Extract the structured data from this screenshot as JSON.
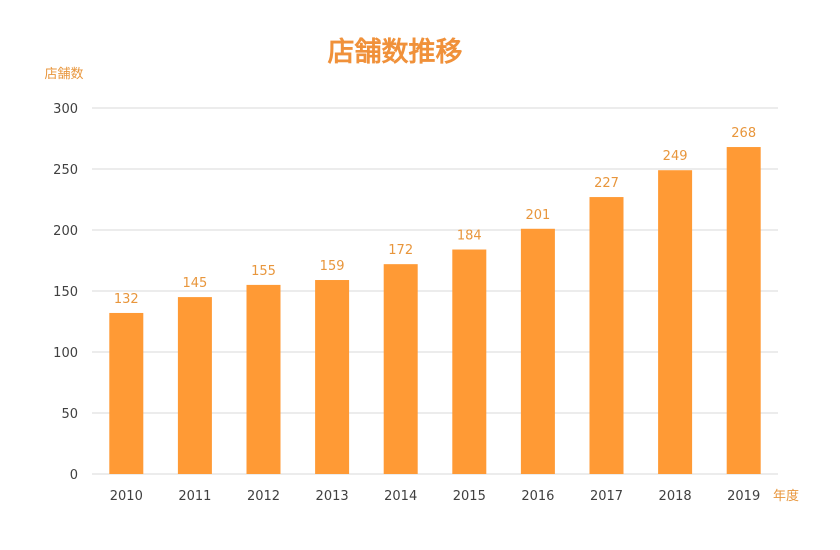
{
  "chart_data": {
    "type": "bar",
    "title": "店舗数推移",
    "ylabel": "店舗数",
    "xlabel": "年度",
    "categories": [
      "2010",
      "2011",
      "2012",
      "2013",
      "2014",
      "2015",
      "2016",
      "2017",
      "2018",
      "2019"
    ],
    "values": [
      132,
      145,
      155,
      159,
      172,
      184,
      201,
      227,
      249,
      268
    ],
    "ylim": [
      0,
      300
    ],
    "yticks": [
      0,
      50,
      100,
      150,
      200,
      250,
      300
    ],
    "grid": true,
    "data_labels": true,
    "colors": {
      "bar": "#FF9A35",
      "label": "#E8963C",
      "title": "#F0913A",
      "grid": "#D9D9D9",
      "tick": "#404040"
    }
  }
}
